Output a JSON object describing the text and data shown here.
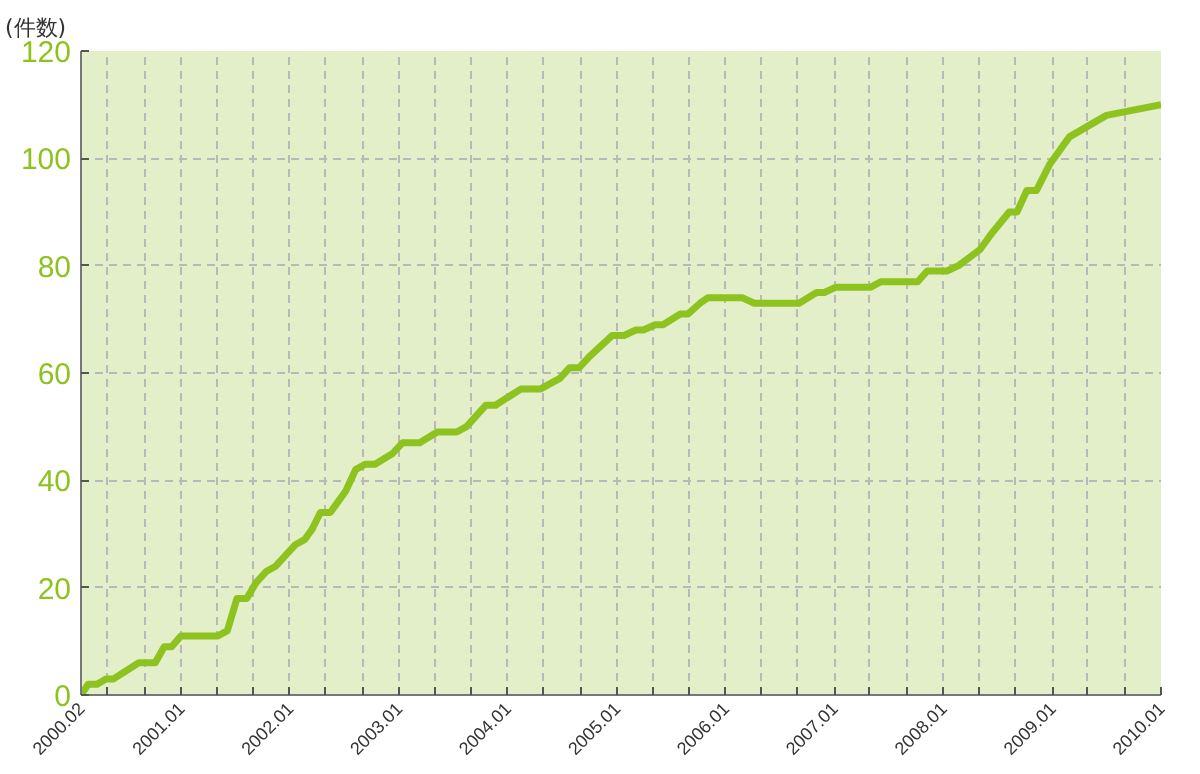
{
  "chart_data": {
    "type": "line",
    "ylabel": "(件数)",
    "x": [
      "2000-02-01",
      "2000-02-25",
      "2000-03-26",
      "2000-04-25",
      "2000-05-20",
      "2000-08-13",
      "2000-10-07",
      "2000-11-06",
      "2000-12-01",
      "2001-01-01",
      "2001-05-05",
      "2001-06-06",
      "2001-07-08",
      "2001-08-10",
      "2001-09-11",
      "2001-10-14",
      "2001-11-15",
      "2002-01-20",
      "2002-02-21",
      "2002-03-18",
      "2002-04-14",
      "2002-05-17",
      "2002-07-08",
      "2002-08-10",
      "2002-09-11",
      "2002-10-14",
      "2002-12-12",
      "2003-01-14",
      "2003-03-13",
      "2003-05-11",
      "2003-07-15",
      "2003-08-17",
      "2003-10-21",
      "2003-11-22",
      "2004-02-15",
      "2004-04-20",
      "2004-06-25",
      "2004-07-28",
      "2004-08-29",
      "2004-10-01",
      "2004-12-18",
      "2005-01-26",
      "2005-03-07",
      "2005-04-01",
      "2005-05-11",
      "2005-06-06",
      "2005-08-03",
      "2005-08-29",
      "2005-10-08",
      "2005-11-03",
      "2006-02-28",
      "2006-04-08",
      "2006-09-05",
      "2006-11-03",
      "2006-11-29",
      "2007-01-07",
      "2007-05-04",
      "2007-06-06",
      "2007-10-08",
      "2007-11-09",
      "2008-01-14",
      "2008-02-22",
      "2008-05-04",
      "2008-06-12",
      "2008-08-10",
      "2008-09-05",
      "2008-10-08",
      "2008-11-09",
      "2008-12-25",
      "2009-02-28",
      "2009-07-02",
      "2010-01-01"
    ],
    "series": [
      {
        "color": "#8dc21f",
        "values": [
          0,
          2,
          2,
          3,
          3,
          6,
          6,
          9,
          9,
          11,
          11,
          12,
          18,
          18,
          21,
          23,
          24,
          28,
          29,
          31,
          34,
          34,
          38,
          42,
          43,
          43,
          45,
          47,
          47,
          49,
          49,
          50,
          54,
          54,
          57,
          57,
          59,
          61,
          61,
          63,
          67,
          67,
          68,
          68,
          69,
          69,
          71,
          71,
          73,
          74,
          74,
          73,
          73,
          75,
          75,
          76,
          76,
          77,
          77,
          79,
          79,
          80,
          83,
          86,
          90,
          90,
          94,
          94,
          99,
          104,
          108,
          110
        ]
      }
    ],
    "xlim": [
      "2000-02",
      "2010-01"
    ],
    "xticks": [
      {
        "value": "2000-02",
        "label": "2000.02"
      },
      {
        "value": "2000-05",
        "label": null
      },
      {
        "value": "2000-09",
        "label": null
      },
      {
        "value": "2001-01",
        "label": "2001.01"
      },
      {
        "value": "2001-05",
        "label": null
      },
      {
        "value": "2001-09",
        "label": null
      },
      {
        "value": "2002-01",
        "label": "2002.01"
      },
      {
        "value": "2002-05",
        "label": null
      },
      {
        "value": "2002-09",
        "label": null
      },
      {
        "value": "2003-01",
        "label": "2003.01"
      },
      {
        "value": "2003-05",
        "label": null
      },
      {
        "value": "2003-09",
        "label": null
      },
      {
        "value": "2004-01",
        "label": "2004.01"
      },
      {
        "value": "2004-05",
        "label": null
      },
      {
        "value": "2004-09",
        "label": null
      },
      {
        "value": "2005-01",
        "label": "2005.01"
      },
      {
        "value": "2005-05",
        "label": null
      },
      {
        "value": "2005-09",
        "label": null
      },
      {
        "value": "2006-01",
        "label": "2006.01"
      },
      {
        "value": "2006-05",
        "label": null
      },
      {
        "value": "2006-09",
        "label": null
      },
      {
        "value": "2007-01",
        "label": "2007.01"
      },
      {
        "value": "2007-05",
        "label": null
      },
      {
        "value": "2007-09",
        "label": null
      },
      {
        "value": "2008-01",
        "label": "2008.01"
      },
      {
        "value": "2008-05",
        "label": null
      },
      {
        "value": "2008-09",
        "label": null
      },
      {
        "value": "2009-01",
        "label": "2009.01"
      },
      {
        "value": "2009-05",
        "label": null
      },
      {
        "value": "2009-09",
        "label": null
      },
      {
        "value": "2010-01",
        "label": "2010.01"
      }
    ],
    "ylim": [
      0,
      120
    ],
    "yticks": [
      0,
      20,
      40,
      60,
      80,
      100,
      120
    ],
    "grid": true,
    "marker": "none",
    "line_style": "solid"
  }
}
